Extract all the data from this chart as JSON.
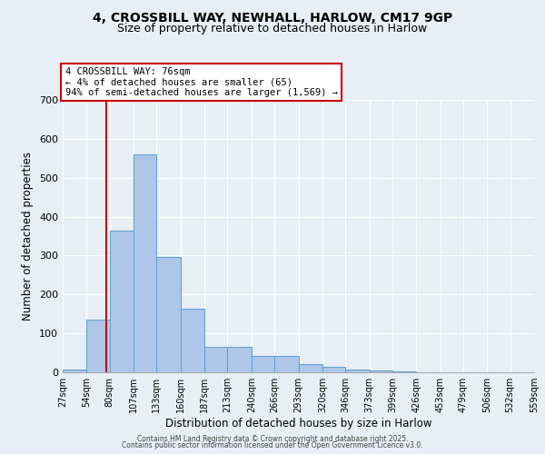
{
  "title_line1": "4, CROSSBILL WAY, NEWHALL, HARLOW, CM17 9GP",
  "title_line2": "Size of property relative to detached houses in Harlow",
  "xlabel": "Distribution of detached houses by size in Harlow",
  "ylabel": "Number of detached properties",
  "bin_edges": [
    27,
    54,
    80,
    107,
    133,
    160,
    187,
    213,
    240,
    266,
    293,
    320,
    346,
    373,
    399,
    426,
    453,
    479,
    506,
    532,
    559
  ],
  "bar_heights": [
    8,
    136,
    365,
    560,
    297,
    163,
    65,
    65,
    42,
    42,
    20,
    13,
    8,
    5,
    3,
    0,
    0,
    0,
    0,
    0
  ],
  "bar_color": "#aec6e8",
  "bar_edge_color": "#5a9fd4",
  "property_size": 76,
  "vline_color": "#cc0000",
  "annotation_line1": "4 CROSSBILL WAY: 76sqm",
  "annotation_line2": "← 4% of detached houses are smaller (65)",
  "annotation_line3": "94% of semi-detached houses are larger (1,569) →",
  "annotation_box_color": "#ffffff",
  "annotation_box_edge_color": "#cc0000",
  "ylim": [
    0,
    700
  ],
  "yticks": [
    0,
    100,
    200,
    300,
    400,
    500,
    600,
    700
  ],
  "background_color": "#e8eef5",
  "grid_color": "#ffffff",
  "footer_line1": "Contains HM Land Registry data © Crown copyright and database right 2025.",
  "footer_line2": "Contains public sector information licensed under the Open Government Licence v3.0."
}
